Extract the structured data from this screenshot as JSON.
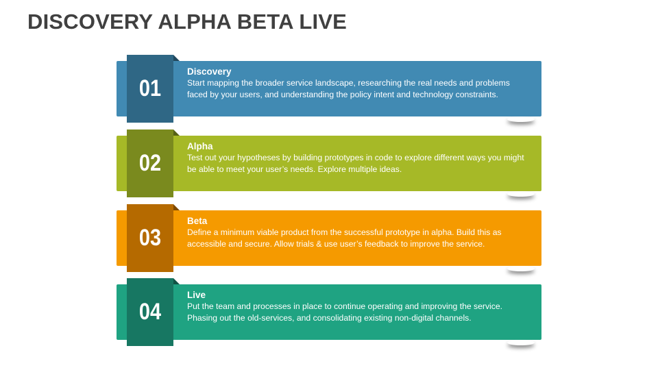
{
  "title": "DISCOVERY ALPHA BETA LIVE",
  "steps": [
    {
      "number": "01",
      "heading": "Discovery",
      "body": "Start mapping the broader service landscape, researching the real needs and problems faced by your users, and understanding the policy intent and technology constraints.",
      "color": "#418AB3",
      "dark": "#2F6785"
    },
    {
      "number": "02",
      "heading": "Alpha",
      "body": "Test out your hypotheses by building prototypes in code to explore different ways you might be able to meet your user’s needs. Explore multiple ideas.",
      "color": "#A6B927",
      "dark": "#7A8A1E"
    },
    {
      "number": "03",
      "heading": "Beta",
      "body": "Define a minimum viable product from the successful prototype in alpha. Build this as accessible and secure. Allow trials & use user’s feedback to improve the service.",
      "color": "#F59A00",
      "dark": "#B56A00"
    },
    {
      "number": "04",
      "heading": "Live",
      "body": "Put the team and processes in place to continue operating and improving the service. Phasing out the old-services,  and consolidating existing non-digital channels.",
      "color": "#1FA382",
      "dark": "#177762"
    }
  ]
}
